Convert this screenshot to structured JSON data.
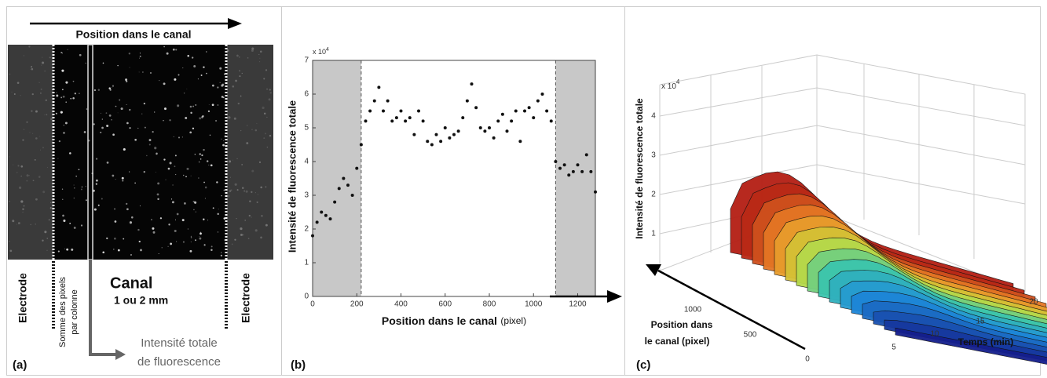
{
  "panel_a": {
    "label": "(a)",
    "top_label": "Position dans le canal",
    "electrode_left": "Electrode",
    "electrode_right": "Electrode",
    "sum_label": [
      "Somme des pixels",
      "par colonne"
    ],
    "canal": "Canal",
    "canal_width": "1 ou 2 mm",
    "output_label": [
      "Intensité totale",
      "de fluorescence"
    ]
  },
  "chart_data": {
    "type": "scatter",
    "panel_label": "(b)",
    "xlabel": "Position dans le canal",
    "xlabel_unit": "(pixel)",
    "ylabel": "Intensité de fluorescence totale",
    "y_multiplier": "x 10",
    "y_multiplier_exponent": "4",
    "x": [
      0,
      20,
      40,
      60,
      80,
      100,
      120,
      140,
      160,
      180,
      200,
      220,
      240,
      260,
      280,
      300,
      320,
      340,
      360,
      380,
      400,
      420,
      440,
      460,
      480,
      500,
      520,
      540,
      560,
      580,
      600,
      620,
      640,
      660,
      680,
      700,
      720,
      740,
      760,
      780,
      800,
      820,
      840,
      860,
      880,
      900,
      920,
      940,
      960,
      980,
      1000,
      1020,
      1040,
      1060,
      1080,
      1100,
      1120,
      1140,
      1160,
      1180,
      1200,
      1220,
      1240,
      1260,
      1280
    ],
    "values": [
      1.8,
      2.2,
      2.5,
      2.4,
      2.3,
      2.8,
      3.2,
      3.5,
      3.3,
      3.0,
      3.8,
      4.5,
      5.2,
      5.5,
      5.8,
      6.2,
      5.5,
      5.8,
      5.2,
      5.3,
      5.5,
      5.2,
      5.3,
      4.8,
      5.5,
      5.2,
      4.6,
      4.5,
      4.8,
      4.6,
      5.0,
      4.7,
      4.8,
      4.9,
      5.3,
      5.8,
      6.3,
      5.6,
      5.0,
      4.9,
      5.0,
      4.7,
      5.2,
      5.4,
      4.9,
      5.2,
      5.5,
      4.6,
      5.5,
      5.6,
      5.3,
      5.8,
      6.0,
      5.5,
      5.2,
      4.0,
      3.8,
      3.9,
      3.6,
      3.7,
      3.9,
      3.7,
      4.2,
      3.7,
      3.1
    ],
    "color": "#111111",
    "xlim": [
      0,
      1280
    ],
    "ylim": [
      0,
      7
    ],
    "xticks": [
      0,
      200,
      400,
      600,
      800,
      1000,
      1200
    ],
    "yticks": [
      0,
      1,
      2,
      3,
      4,
      5,
      6,
      7
    ],
    "shaded_x": [
      [
        0,
        220
      ],
      [
        1100,
        1280
      ]
    ],
    "shade_color": "#c8c8c8"
  },
  "panel_c": {
    "label": "(c)",
    "z_multiplier": "x 10",
    "z_multiplier_exponent": "4",
    "zlabel": "Intensité de fluorescence totale",
    "zticks": [
      1,
      2,
      3,
      4
    ],
    "position_label": [
      "Position dans",
      "le canal (pixel)"
    ],
    "position_ticks": [
      0,
      500,
      1000
    ],
    "time_label": "Temps (min)",
    "time_ticks": [
      5,
      10,
      15,
      20
    ]
  }
}
